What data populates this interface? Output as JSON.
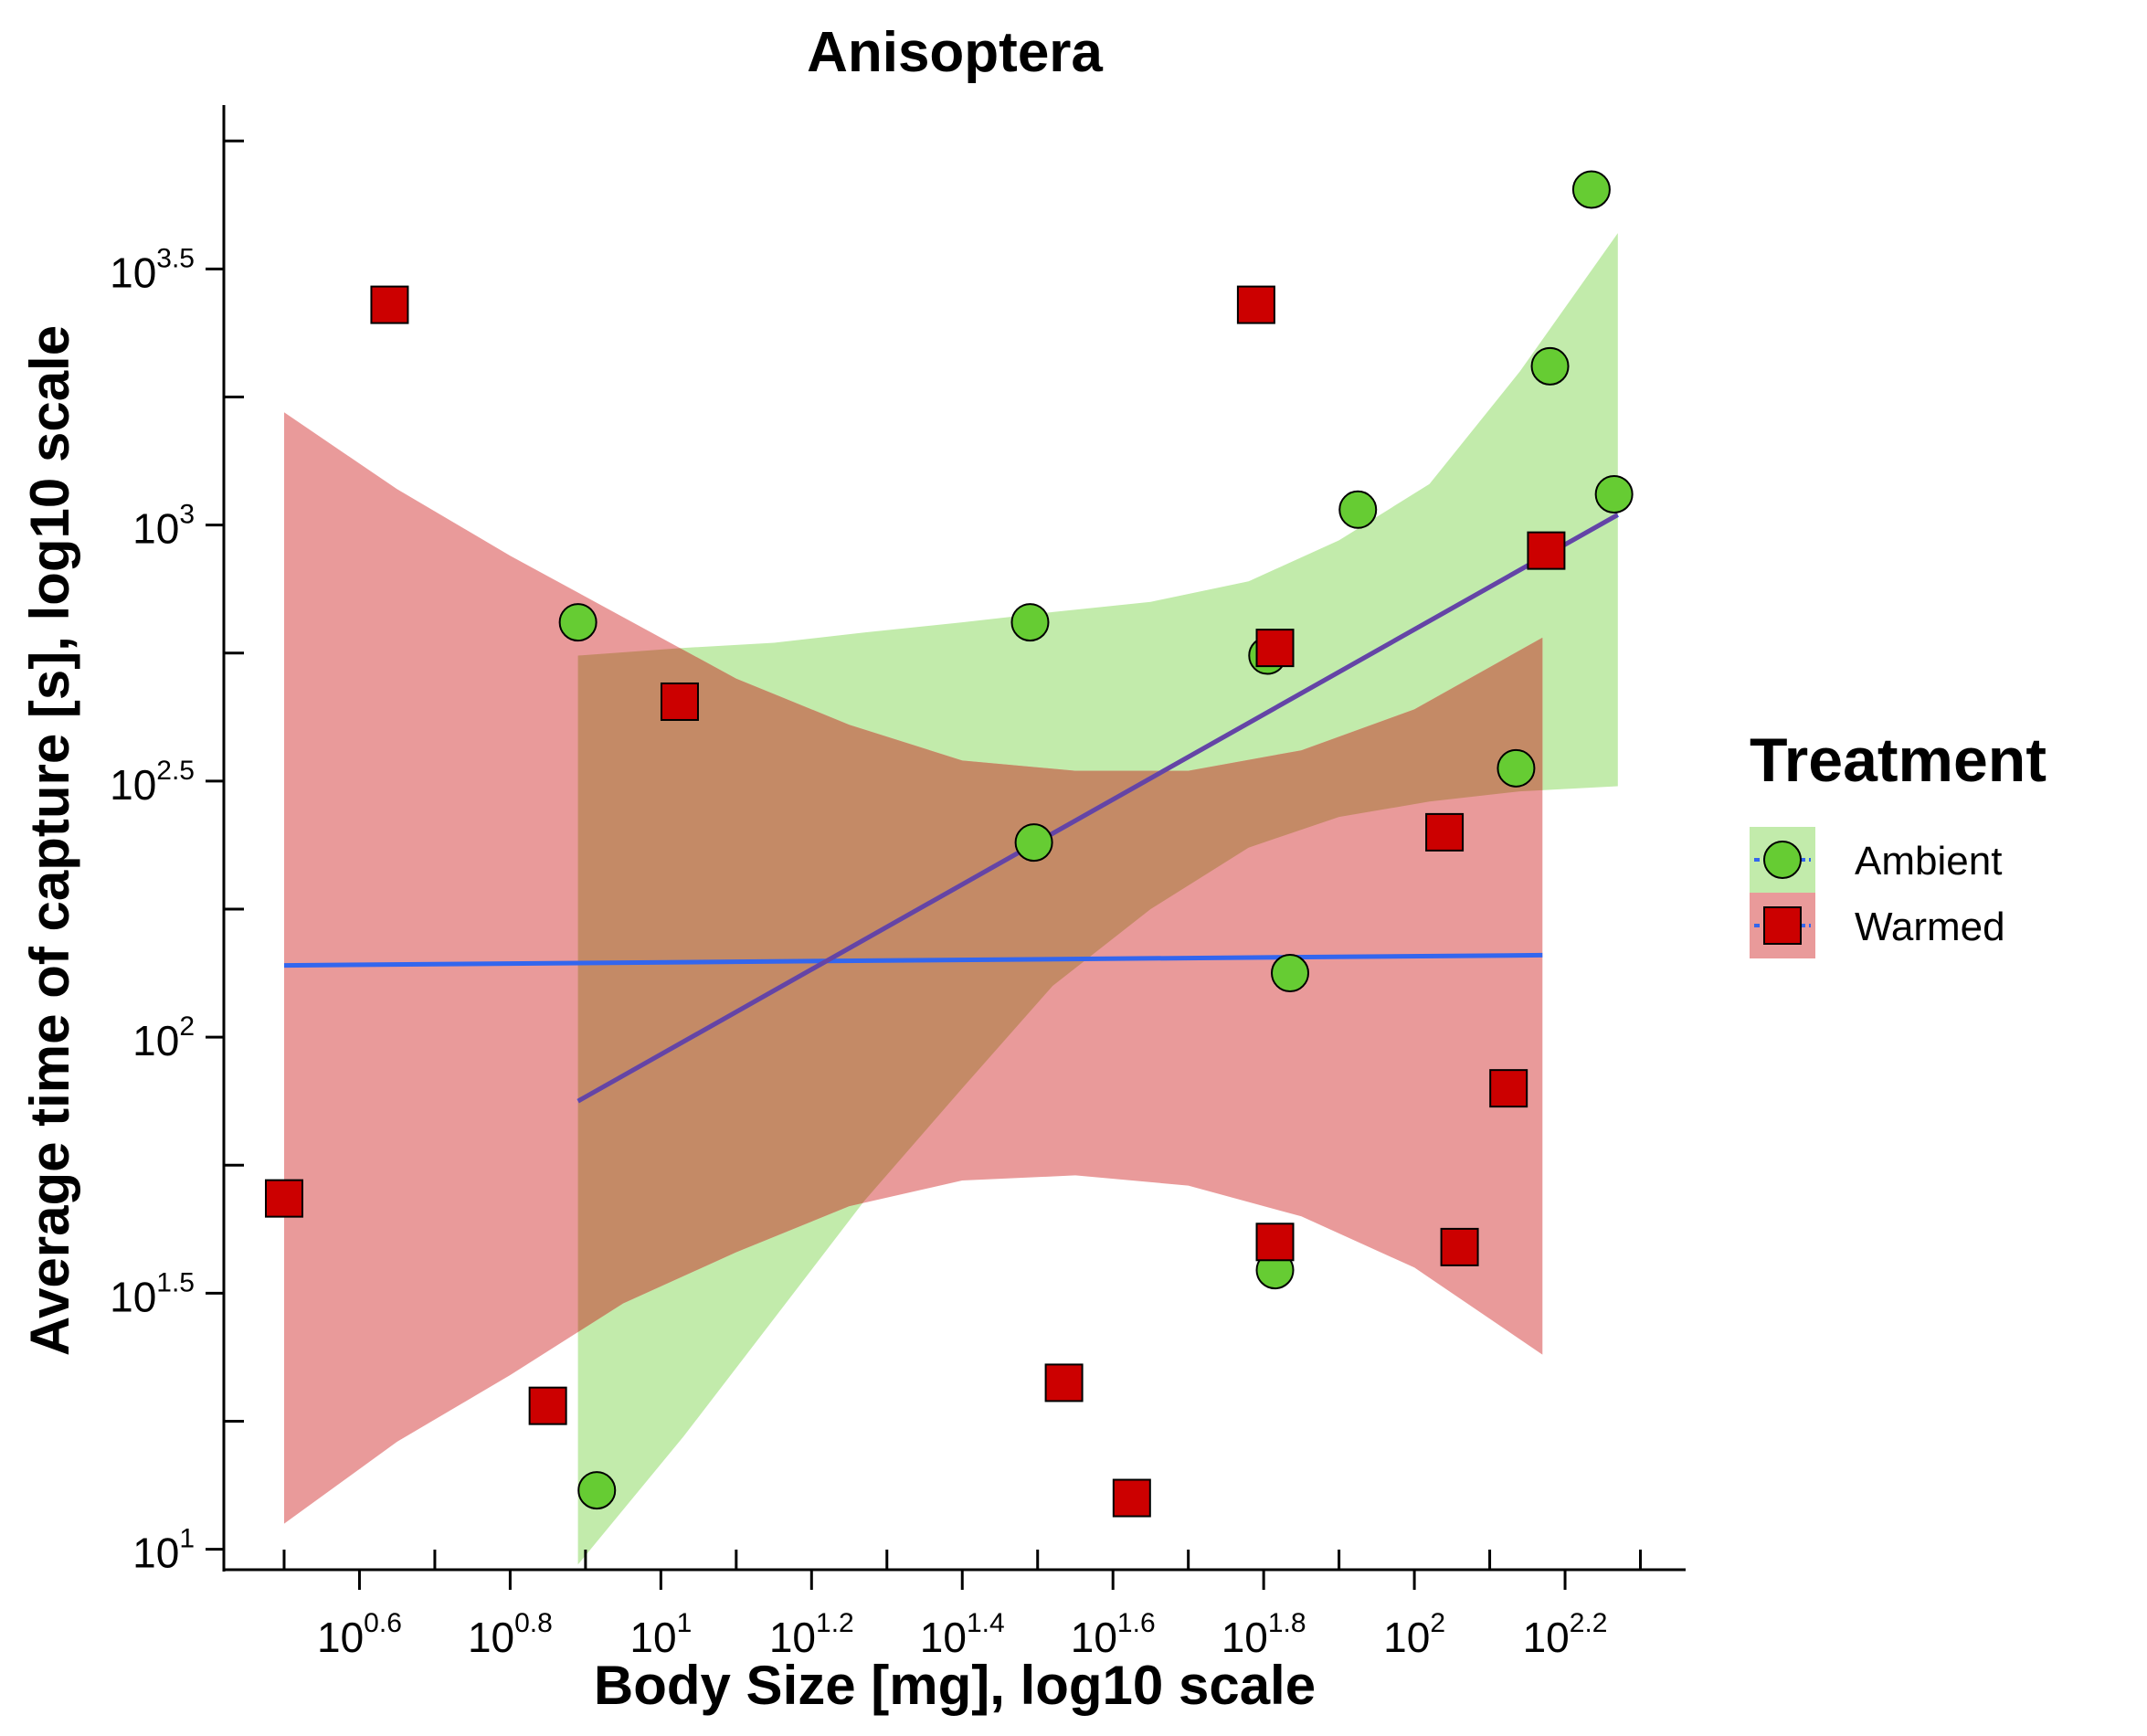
{
  "chart_data": {
    "type": "scatter",
    "title": "Anisoptera",
    "xlabel": "Body Size [mg], log10 scale",
    "ylabel": "Average time of capture [s], log10 scale",
    "x_scale": "log10",
    "y_scale": "log10",
    "xlim_log10": [
      0.42,
      2.36
    ],
    "ylim_log10": [
      0.96,
      3.82
    ],
    "x_ticks": [
      {
        "base": "10",
        "exp": "0.6",
        "log": 0.6
      },
      {
        "base": "10",
        "exp": "0.8",
        "log": 0.8
      },
      {
        "base": "10",
        "exp": "1",
        "log": 1.0
      },
      {
        "base": "10",
        "exp": "1.2",
        "log": 1.2
      },
      {
        "base": "10",
        "exp": "1.4",
        "log": 1.4
      },
      {
        "base": "10",
        "exp": "1.6",
        "log": 1.6
      },
      {
        "base": "10",
        "exp": "1.8",
        "log": 1.8
      },
      {
        "base": "10",
        "exp": "2",
        "log": 2.0
      },
      {
        "base": "10",
        "exp": "2.2",
        "log": 2.2
      }
    ],
    "y_ticks": [
      {
        "base": "10",
        "exp": "1",
        "log": 1.0
      },
      {
        "base": "10",
        "exp": "1.5",
        "log": 1.5
      },
      {
        "base": "10",
        "exp": "2",
        "log": 2.0
      },
      {
        "base": "10",
        "exp": "2.5",
        "log": 2.5
      },
      {
        "base": "10",
        "exp": "3",
        "log": 3.0
      },
      {
        "base": "10",
        "exp": "3.5",
        "log": 3.5
      }
    ],
    "x_minor_log": [
      0.5,
      0.7,
      0.9,
      1.1,
      1.3,
      1.5,
      1.7,
      1.9,
      2.1,
      2.3
    ],
    "y_minor_log": [
      1.25,
      1.75,
      2.25,
      2.75,
      3.25,
      3.75
    ],
    "legend": {
      "title": "Treatment",
      "placement": "right",
      "entries": [
        {
          "label": "Ambient",
          "marker": "circle",
          "fill": "#66cc33",
          "band": "#c2ebab"
        },
        {
          "label": "Warmed",
          "marker": "square",
          "fill": "#cc0000",
          "band": "#e99a9a"
        }
      ]
    },
    "series": [
      {
        "name": "Ambient",
        "marker": "circle",
        "color": "#66cc33",
        "band_color": "#9ddc7a",
        "x_log10": [
          0.89,
          0.915,
          1.49,
          1.495,
          1.805,
          1.815,
          1.835,
          1.925,
          2.135,
          2.18,
          2.235,
          2.265
        ],
        "y_log10": [
          2.81,
          1.115,
          2.81,
          2.38,
          2.745,
          1.545,
          2.125,
          3.03,
          2.525,
          3.31,
          3.655,
          3.06
        ],
        "fit_log10": {
          "x": [
            0.89,
            2.27
          ],
          "y": [
            1.875,
            3.02
          ]
        },
        "band_log10": {
          "x": [
            0.89,
            1.03,
            1.15,
            1.27,
            1.4,
            1.52,
            1.65,
            1.78,
            1.9,
            2.02,
            2.14,
            2.27
          ],
          "upper": [
            2.745,
            2.76,
            2.77,
            2.79,
            2.81,
            2.83,
            2.85,
            2.89,
            2.97,
            3.08,
            3.3,
            3.57
          ],
          "lower": [
            0.97,
            1.22,
            1.45,
            1.68,
            1.9,
            2.1,
            2.25,
            2.37,
            2.43,
            2.46,
            2.48,
            2.49
          ]
        }
      },
      {
        "name": "Warmed",
        "marker": "square",
        "color": "#cc0000",
        "band_color": "#e99a9a",
        "x_log10": [
          0.5,
          0.64,
          0.85,
          1.025,
          1.535,
          1.625,
          1.79,
          1.815,
          1.815,
          2.04,
          2.06,
          2.125,
          2.175
        ],
        "y_log10": [
          1.685,
          3.43,
          1.28,
          2.655,
          1.325,
          1.1,
          3.43,
          2.76,
          1.6,
          2.4,
          1.59,
          1.9,
          2.95
        ],
        "fit_log10": {
          "x": [
            0.5,
            2.17
          ],
          "y": [
            2.14,
            2.16
          ]
        },
        "band_log10": {
          "x": [
            0.5,
            0.65,
            0.8,
            0.95,
            1.1,
            1.25,
            1.4,
            1.55,
            1.7,
            1.85,
            2.0,
            2.17
          ],
          "upper": [
            3.22,
            3.07,
            2.94,
            2.82,
            2.7,
            2.61,
            2.54,
            2.52,
            2.52,
            2.56,
            2.64,
            2.78
          ],
          "lower": [
            1.05,
            1.21,
            1.34,
            1.48,
            1.58,
            1.67,
            1.72,
            1.73,
            1.71,
            1.65,
            1.55,
            1.38
          ]
        }
      }
    ],
    "fit_line_color": "#3366ee",
    "overlap_color": "#c48a66",
    "ambient_fit_visible_color": "#6e3f99"
  }
}
